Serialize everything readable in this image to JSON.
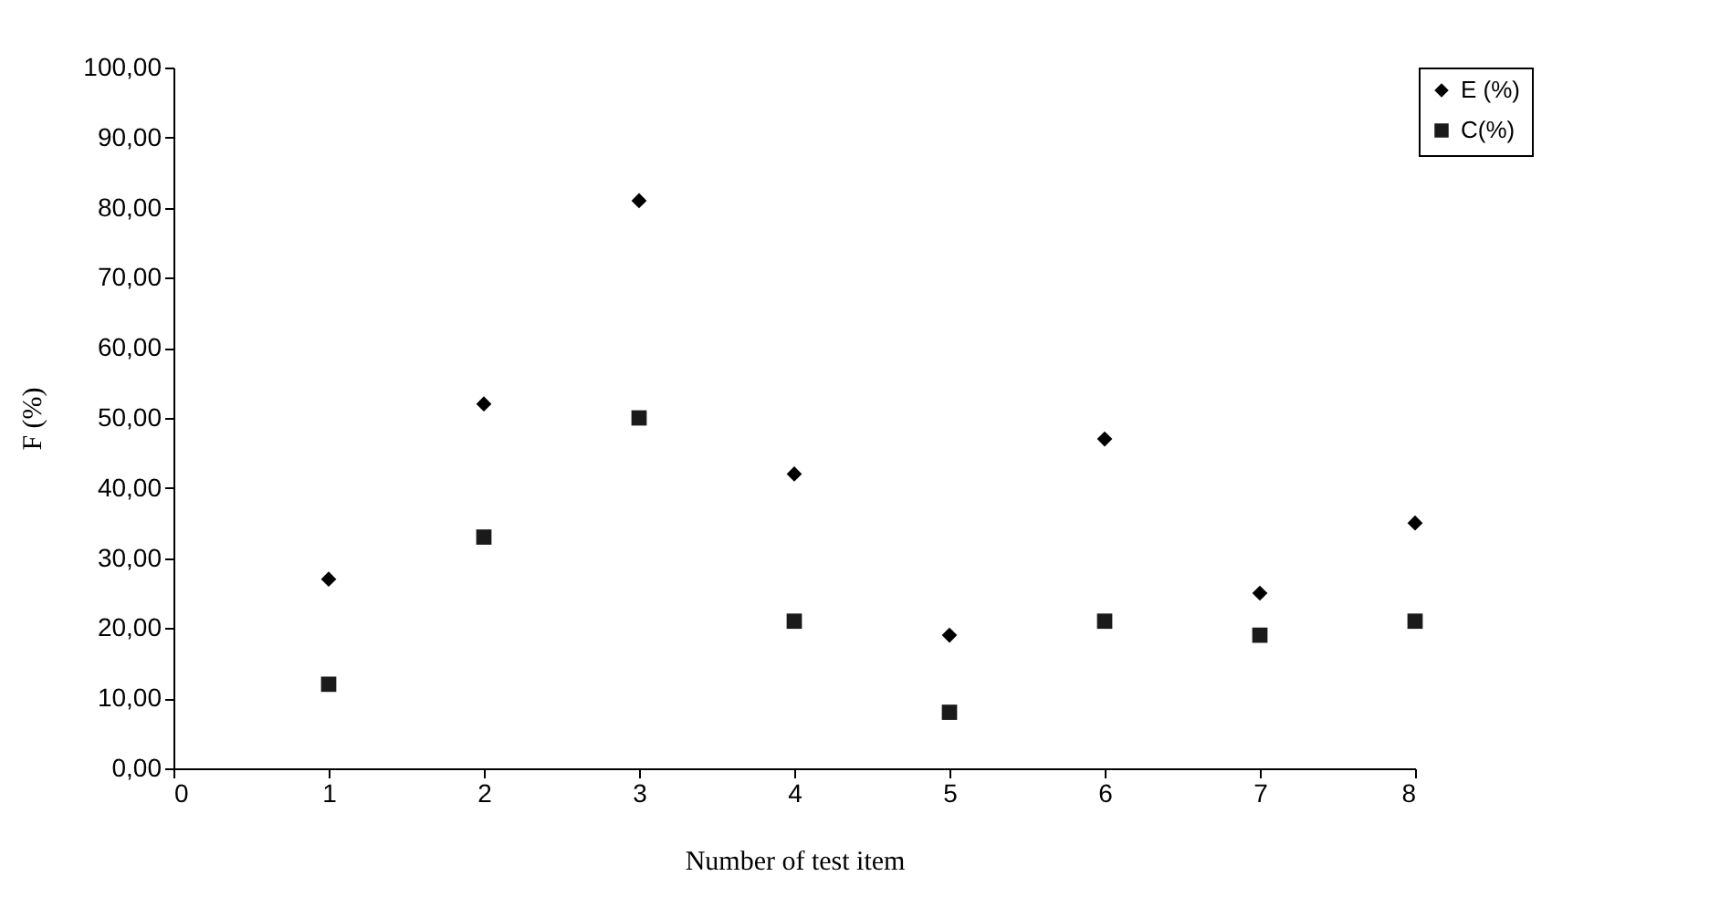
{
  "chart_data": {
    "type": "scatter",
    "xlabel": "Number of test item",
    "ylabel": "F (%)",
    "x": [
      1,
      2,
      3,
      4,
      5,
      6,
      7,
      8
    ],
    "series": [
      {
        "name": "E (%)",
        "color": "#000000",
        "marker": "diamond",
        "values": [
          27,
          52,
          81,
          42,
          19,
          47,
          25,
          35
        ]
      },
      {
        "name": "C(%)",
        "color": "#1a1a1a",
        "marker": "square",
        "values": [
          12,
          33,
          50,
          21,
          8,
          21,
          19,
          21
        ]
      }
    ],
    "xlim": [
      0,
      8
    ],
    "xticks": [
      0,
      1,
      2,
      3,
      4,
      5,
      6,
      7,
      8
    ],
    "ylim": [
      0,
      100
    ],
    "yticks": [
      {
        "value": 0,
        "label": "0,00"
      },
      {
        "value": 10,
        "label": "10,00"
      },
      {
        "value": 20,
        "label": "20,00"
      },
      {
        "value": 30,
        "label": "30,00"
      },
      {
        "value": 40,
        "label": "40,00"
      },
      {
        "value": 50,
        "label": "50,00"
      },
      {
        "value": 60,
        "label": "60,00"
      },
      {
        "value": 70,
        "label": "70,00"
      },
      {
        "value": 80,
        "label": "80,00"
      },
      {
        "value": 90,
        "label": "90,00"
      },
      {
        "value": 100,
        "label": "100,00"
      }
    ],
    "grid": false,
    "legend": "right"
  }
}
